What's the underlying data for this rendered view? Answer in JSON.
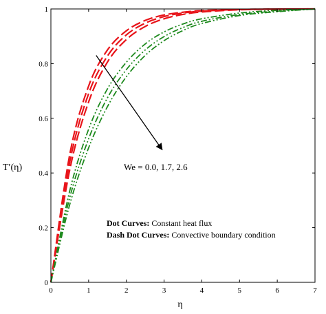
{
  "chart_data": {
    "type": "line",
    "xlabel": "η",
    "ylabel": "T′(η)",
    "xlim": [
      0,
      7
    ],
    "ylim": [
      0,
      1
    ],
    "x_ticks": [
      "0",
      "1",
      "2",
      "3",
      "4",
      "5",
      "6",
      "7"
    ],
    "y_ticks": [
      "0",
      "0.2",
      "0.4",
      "0.6",
      "0.8",
      "1"
    ],
    "grid": false,
    "annotation": "We = 0.0, 1.7, 2.6",
    "legend": [
      {
        "bold": "Dot Curves:",
        "text": " Constant heat flux"
      },
      {
        "bold": "Dash Dot Curves:",
        "text": " Convective boundary condition"
      }
    ],
    "colors": {
      "constant_heat_flux": "#e8141a",
      "convective": "#1e8a1e",
      "arrow": "#000000"
    },
    "series": [
      {
        "style": "dash",
        "color": "#e8141a",
        "x": [
          0,
          0.5,
          1,
          1.5,
          2,
          2.5,
          3,
          3.5,
          4,
          5,
          6,
          7
        ],
        "y": [
          0,
          0.468,
          0.718,
          0.85,
          0.92,
          0.958,
          0.978,
          0.988,
          0.994,
          0.998,
          0.9995,
          1.0
        ]
      },
      {
        "style": "dash",
        "color": "#e8141a",
        "x": [
          0,
          0.5,
          1,
          1.5,
          2,
          2.5,
          3,
          3.5,
          4,
          5,
          6,
          7
        ],
        "y": [
          0,
          0.44,
          0.69,
          0.828,
          0.905,
          0.948,
          0.972,
          0.985,
          0.992,
          0.998,
          0.9995,
          1.0
        ]
      },
      {
        "style": "dash",
        "color": "#e8141a",
        "x": [
          0,
          0.5,
          1,
          1.5,
          2,
          2.5,
          3,
          3.5,
          4,
          5,
          6,
          7
        ],
        "y": [
          0,
          0.412,
          0.66,
          0.806,
          0.888,
          0.936,
          0.964,
          0.98,
          0.989,
          0.997,
          0.999,
          1.0
        ]
      },
      {
        "style": "dashdot",
        "color": "#1e8a1e",
        "x": [
          0,
          0.5,
          1,
          1.5,
          2,
          2.5,
          3,
          3.5,
          4,
          5,
          6,
          7
        ],
        "y": [
          0,
          0.335,
          0.56,
          0.708,
          0.805,
          0.872,
          0.916,
          0.945,
          0.964,
          0.985,
          0.995,
          1.0
        ]
      },
      {
        "style": "dashdot",
        "color": "#1e8a1e",
        "x": [
          0,
          0.5,
          1,
          1.5,
          2,
          2.5,
          3,
          3.5,
          4,
          5,
          6,
          7
        ],
        "y": [
          0,
          0.31,
          0.525,
          0.675,
          0.778,
          0.85,
          0.899,
          0.932,
          0.955,
          0.98,
          0.992,
          1.0
        ]
      },
      {
        "style": "dashdot",
        "color": "#1e8a1e",
        "x": [
          0,
          0.5,
          1,
          1.5,
          2,
          2.5,
          3,
          3.5,
          4,
          5,
          6,
          7
        ],
        "y": [
          0,
          0.285,
          0.492,
          0.643,
          0.752,
          0.83,
          0.884,
          0.921,
          0.947,
          0.976,
          0.99,
          1.0
        ]
      }
    ],
    "arrow": {
      "from": [
        1.2,
        0.83
      ],
      "to": [
        2.95,
        0.485
      ]
    }
  }
}
